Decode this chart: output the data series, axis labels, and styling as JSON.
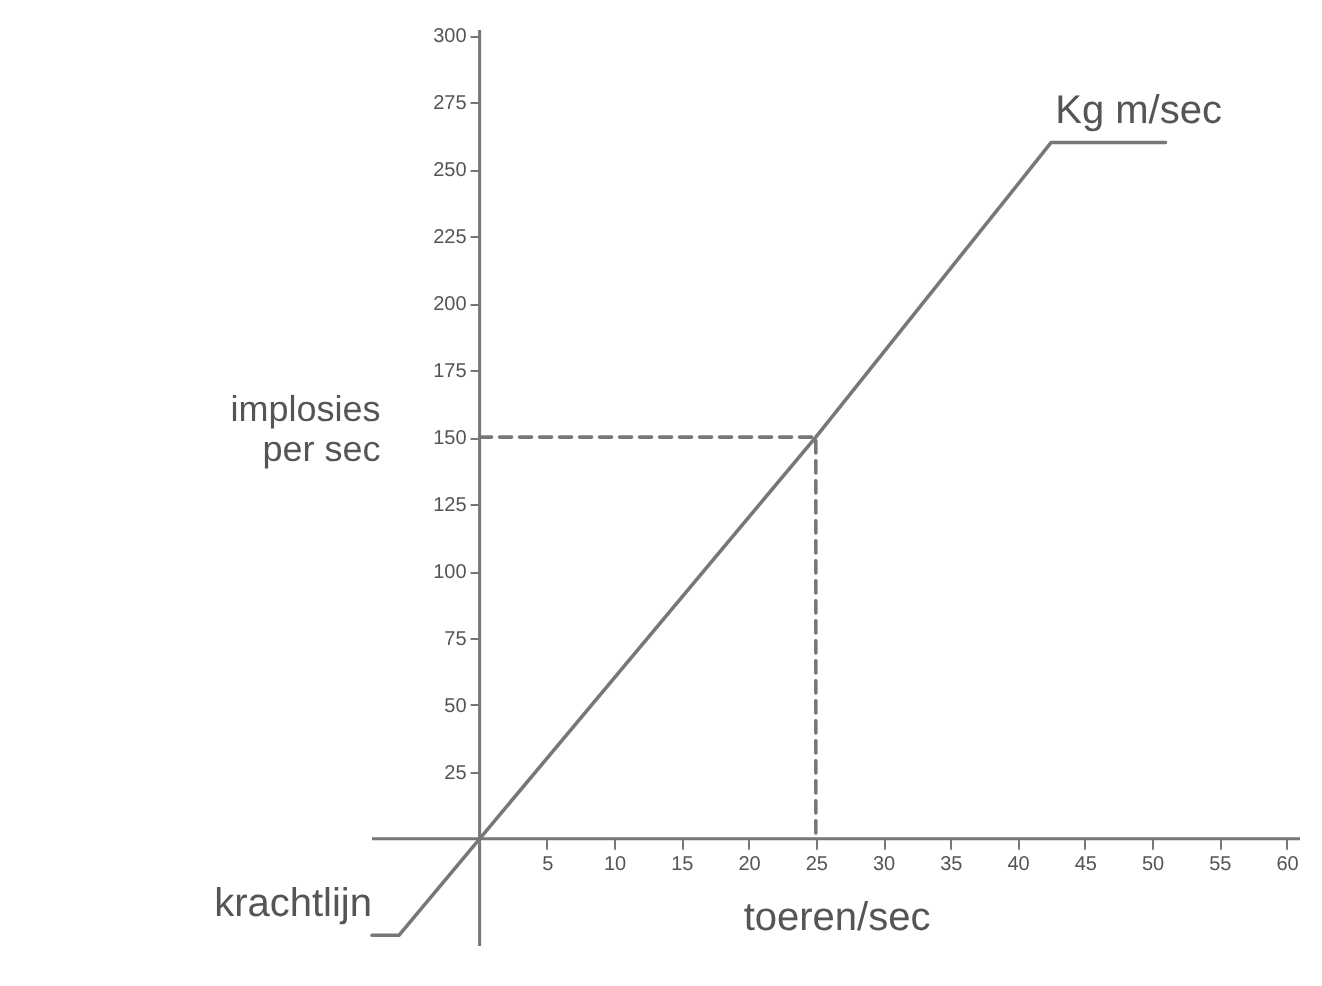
{
  "chart_data": {
    "type": "line",
    "xlabel": "toeren/sec",
    "ylabel": "implosies per sec",
    "xlim": [
      -8,
      61
    ],
    "ylim": [
      -40,
      302
    ],
    "xticks": [
      5,
      10,
      15,
      20,
      25,
      30,
      35,
      40,
      45,
      50,
      55,
      60
    ],
    "yticks": [
      25,
      50,
      75,
      100,
      125,
      150,
      175,
      200,
      225,
      250,
      275,
      300
    ],
    "grid": false,
    "marker": "none",
    "series": [
      {
        "color": "#777777",
        "line_style": "solid",
        "x": [
          -8,
          -6,
          0,
          25,
          42.5,
          51
        ],
        "values": [
          -36,
          -36,
          0,
          150,
          260,
          260
        ]
      },
      {
        "color": "#777777",
        "line_style": "dashed",
        "x": [
          0,
          25,
          25
        ],
        "values": [
          150,
          150,
          0
        ]
      }
    ],
    "annotations": [
      {
        "text": "Kg m/sec",
        "x": 49,
        "y": 262
      },
      {
        "text": "krachtlijn",
        "x": -8,
        "y": -34
      }
    ]
  }
}
